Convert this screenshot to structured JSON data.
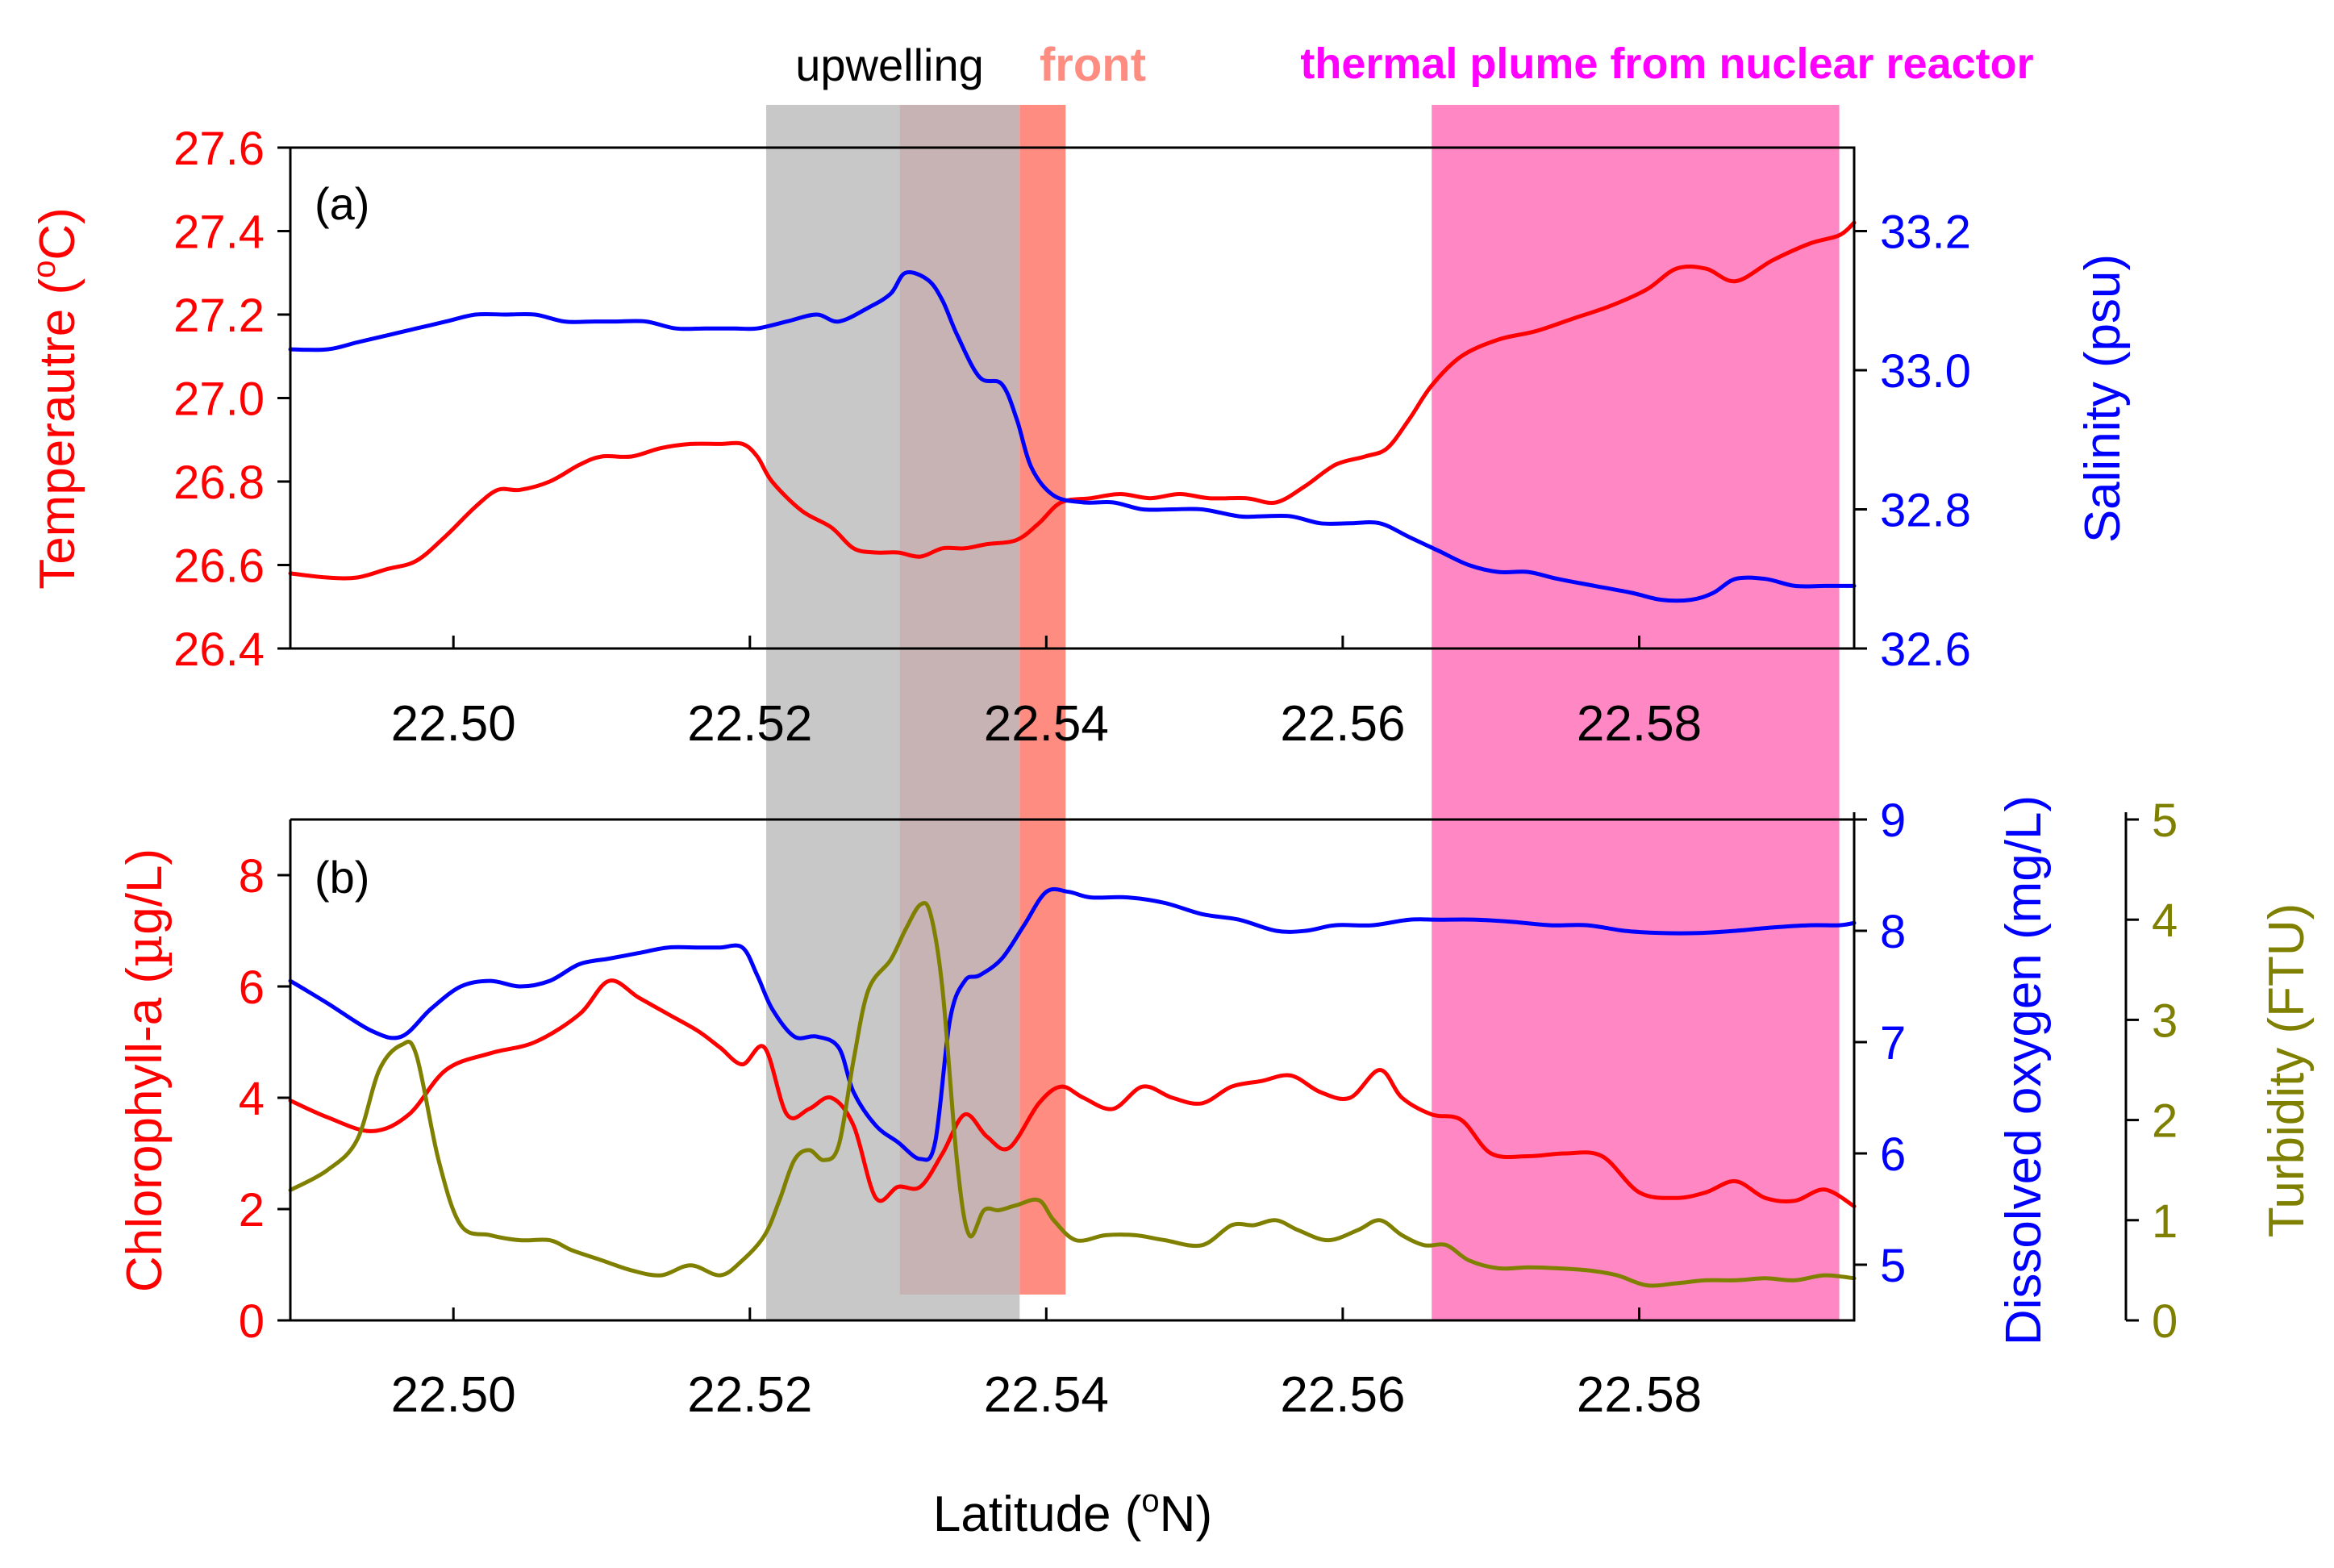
{
  "chart_data": [
    {
      "panel": "(a)",
      "type": "line",
      "title": "",
      "xlabel": "",
      "xlim": [
        22.489,
        22.5945
      ],
      "xticks": [
        "22.50",
        "22.52",
        "22.54",
        "22.56",
        "22.58"
      ],
      "xtick_values": [
        22.5,
        22.52,
        22.54,
        22.56,
        22.58
      ],
      "grid": false,
      "y_left": {
        "label": "Temperautre (°C)",
        "label_prefix": "Temperautre (",
        "label_sup": "o",
        "label_suffix": "C)",
        "lim": [
          26.4,
          27.6
        ],
        "ticks": [
          "26.4",
          "26.6",
          "26.8",
          "27.0",
          "27.2",
          "27.4",
          "27.6"
        ],
        "tick_values": [
          26.4,
          26.6,
          26.8,
          27.0,
          27.2,
          27.4,
          27.6
        ],
        "color": "#ff0000"
      },
      "y_right": {
        "label": "Salinity (psu)",
        "lim": [
          32.6,
          33.32
        ],
        "ticks": [
          "32.6",
          "32.8",
          "33.0",
          "33.2"
        ],
        "tick_values": [
          32.6,
          32.8,
          33.0,
          33.2
        ],
        "color": "#0000ff"
      },
      "series": [
        {
          "name": "Temperature",
          "axis": "left",
          "color": "#ff0000",
          "x": [
            22.489,
            22.4915,
            22.4935,
            22.4955,
            22.4975,
            22.4995,
            22.5015,
            22.503,
            22.5045,
            22.5065,
            22.5085,
            22.51,
            22.512,
            22.514,
            22.516,
            22.518,
            22.5195,
            22.5205,
            22.5215,
            22.5235,
            22.5255,
            22.527,
            22.5285,
            22.53,
            22.5315,
            22.533,
            22.5345,
            22.536,
            22.538,
            22.5395,
            22.541,
            22.543,
            22.545,
            22.547,
            22.549,
            22.551,
            22.5535,
            22.5555,
            22.5575,
            22.5595,
            22.5615,
            22.563,
            22.5645,
            22.566,
            22.568,
            22.5705,
            22.573,
            22.5755,
            22.578,
            22.5805,
            22.5825,
            22.5845,
            22.5865,
            22.589,
            22.5915,
            22.5935,
            22.5945
          ],
          "values": [
            26.58,
            26.57,
            26.57,
            26.59,
            26.61,
            26.67,
            26.74,
            26.78,
            26.78,
            26.8,
            26.84,
            26.86,
            26.86,
            26.88,
            26.89,
            26.89,
            26.89,
            26.86,
            26.8,
            26.73,
            26.69,
            26.64,
            26.63,
            26.63,
            26.62,
            26.64,
            26.64,
            26.65,
            26.66,
            26.7,
            26.75,
            26.76,
            26.77,
            26.76,
            26.77,
            26.76,
            26.76,
            26.75,
            26.79,
            26.84,
            26.86,
            26.88,
            26.95,
            27.03,
            27.1,
            27.14,
            27.16,
            27.19,
            27.22,
            27.26,
            27.31,
            27.31,
            27.28,
            27.33,
            27.37,
            27.39,
            27.42
          ]
        },
        {
          "name": "Salinity",
          "axis": "right",
          "color": "#0000ff",
          "x": [
            22.489,
            22.4915,
            22.4935,
            22.4955,
            22.4975,
            22.4995,
            22.5015,
            22.5035,
            22.5055,
            22.5075,
            22.5095,
            22.511,
            22.513,
            22.515,
            22.517,
            22.519,
            22.5205,
            22.5225,
            22.5245,
            22.526,
            22.528,
            22.5295,
            22.5305,
            22.532,
            22.533,
            22.534,
            22.5355,
            22.537,
            22.538,
            22.539,
            22.5405,
            22.5425,
            22.5445,
            22.5465,
            22.5485,
            22.5505,
            22.553,
            22.5545,
            22.5565,
            22.5585,
            22.5605,
            22.5625,
            22.5645,
            22.5665,
            22.5685,
            22.5705,
            22.5725,
            22.5745,
            22.577,
            22.5795,
            22.5815,
            22.5835,
            22.585,
            22.5865,
            22.5885,
            22.5905,
            22.5925,
            22.5945
          ],
          "values": [
            33.03,
            33.03,
            33.04,
            33.05,
            33.06,
            33.07,
            33.08,
            33.08,
            33.08,
            33.07,
            33.07,
            33.07,
            33.07,
            33.06,
            33.06,
            33.06,
            33.06,
            33.07,
            33.08,
            33.07,
            33.09,
            33.11,
            33.14,
            33.13,
            33.1,
            33.05,
            32.99,
            32.98,
            32.93,
            32.86,
            32.82,
            32.81,
            32.81,
            32.8,
            32.8,
            32.8,
            32.79,
            32.79,
            32.79,
            32.78,
            32.78,
            32.78,
            32.76,
            32.74,
            32.72,
            32.71,
            32.71,
            32.7,
            32.69,
            32.68,
            32.67,
            32.67,
            32.68,
            32.7,
            32.7,
            32.69,
            32.69,
            32.69
          ]
        }
      ]
    },
    {
      "panel": "(b)",
      "type": "line",
      "title": "",
      "xlabel": "Latitude (°N)",
      "xlabel_prefix": "Latitude (",
      "xlabel_sup": "o",
      "xlabel_suffix": "N)",
      "xlim": [
        22.489,
        22.5945
      ],
      "xticks": [
        "22.50",
        "22.52",
        "22.54",
        "22.56",
        "22.58"
      ],
      "xtick_values": [
        22.5,
        22.52,
        22.54,
        22.56,
        22.58
      ],
      "grid": false,
      "y_left": {
        "label": "Chlorophyll-a (µg/L)",
        "label_prefix": "Chlorophyll-a (",
        "label_mu": "µ",
        "label_suffix": "g/L)",
        "lim": [
          0,
          9
        ],
        "ticks": [
          "0",
          "2",
          "4",
          "6",
          "8"
        ],
        "tick_values": [
          0,
          2,
          4,
          6,
          8
        ],
        "color": "#ff0000"
      },
      "y_right": {
        "label": "Dissolved oxygen (mg/L)",
        "lim": [
          4.5,
          9
        ],
        "ticks": [
          "5",
          "6",
          "7",
          "8",
          "9"
        ],
        "tick_values": [
          5,
          6,
          7,
          8,
          9
        ],
        "color": "#0000ff"
      },
      "y_right2": {
        "label": "Turbidity (FTU)",
        "lim": [
          0,
          5
        ],
        "ticks": [
          "0",
          "1",
          "2",
          "3",
          "4",
          "5"
        ],
        "tick_values": [
          0,
          1,
          2,
          3,
          4,
          5
        ],
        "color": "#808000"
      },
      "series": [
        {
          "name": "Chlorophyll-a",
          "axis": "left",
          "color": "#ff0000",
          "x": [
            22.489,
            22.4915,
            22.4945,
            22.497,
            22.4995,
            22.5025,
            22.5055,
            22.5085,
            22.5105,
            22.5125,
            22.5145,
            22.5165,
            22.518,
            22.5195,
            22.521,
            22.5225,
            22.524,
            22.5255,
            22.527,
            22.5285,
            22.53,
            22.5315,
            22.533,
            22.5345,
            22.536,
            22.5375,
            22.5395,
            22.541,
            22.5425,
            22.5445,
            22.5465,
            22.5485,
            22.5505,
            22.5525,
            22.5545,
            22.5565,
            22.5585,
            22.5605,
            22.5625,
            22.564,
            22.566,
            22.568,
            22.57,
            22.5725,
            22.575,
            22.5775,
            22.58,
            22.5825,
            22.5845,
            22.5865,
            22.5885,
            22.5905,
            22.5925,
            22.5945
          ],
          "values": [
            3.95,
            3.65,
            3.4,
            3.7,
            4.5,
            4.8,
            5.0,
            5.5,
            6.1,
            5.8,
            5.5,
            5.2,
            4.9,
            4.6,
            4.9,
            3.7,
            3.8,
            4.0,
            3.5,
            2.2,
            2.4,
            2.4,
            3.0,
            3.7,
            3.3,
            3.1,
            3.9,
            4.2,
            4.0,
            3.8,
            4.2,
            4.0,
            3.9,
            4.2,
            4.3,
            4.4,
            4.1,
            4.0,
            4.5,
            4.0,
            3.7,
            3.6,
            3.0,
            2.95,
            3.0,
            2.95,
            2.3,
            2.2,
            2.3,
            2.5,
            2.2,
            2.15,
            2.35,
            2.05
          ]
        },
        {
          "name": "Dissolved oxygen",
          "axis": "right",
          "color": "#0000ff",
          "x": [
            22.489,
            22.4915,
            22.4945,
            22.4965,
            22.4985,
            22.5005,
            22.5025,
            22.5045,
            22.5065,
            22.5085,
            22.5105,
            22.5125,
            22.5145,
            22.5165,
            22.518,
            22.5195,
            22.5205,
            22.5215,
            22.523,
            22.5245,
            22.526,
            22.527,
            22.5285,
            22.53,
            22.5315,
            22.5325,
            22.5335,
            22.5345,
            22.5355,
            22.537,
            22.5385,
            22.54,
            22.5415,
            22.543,
            22.5455,
            22.548,
            22.5505,
            22.553,
            22.5555,
            22.5575,
            22.5595,
            22.562,
            22.5645,
            22.5665,
            22.569,
            22.5715,
            22.574,
            22.5765,
            22.579,
            22.5815,
            22.584,
            22.5865,
            22.589,
            22.5915,
            22.5935,
            22.5945
          ],
          "values": [
            7.55,
            7.35,
            7.1,
            7.05,
            7.3,
            7.5,
            7.55,
            7.5,
            7.55,
            7.7,
            7.75,
            7.8,
            7.85,
            7.85,
            7.85,
            7.85,
            7.6,
            7.3,
            7.05,
            7.05,
            6.95,
            6.55,
            6.25,
            6.1,
            5.95,
            6.1,
            7.2,
            7.55,
            7.6,
            7.75,
            8.05,
            8.35,
            8.35,
            8.3,
            8.3,
            8.25,
            8.15,
            8.1,
            8.0,
            8.0,
            8.05,
            8.05,
            8.1,
            8.1,
            8.1,
            8.08,
            8.05,
            8.05,
            8.0,
            7.98,
            7.98,
            8.0,
            8.03,
            8.05,
            8.05,
            8.07
          ]
        },
        {
          "name": "Turbidity",
          "axis": "right2",
          "color": "#808000",
          "x": [
            22.489,
            22.4915,
            22.4935,
            22.495,
            22.4965,
            22.4975,
            22.499,
            22.5005,
            22.5025,
            22.5045,
            22.5065,
            22.508,
            22.51,
            22.512,
            22.514,
            22.516,
            22.518,
            22.5195,
            22.521,
            22.522,
            22.523,
            22.524,
            22.525,
            22.526,
            22.527,
            22.528,
            22.5295,
            22.5305,
            22.5315,
            22.5322,
            22.533,
            22.534,
            22.5348,
            22.5358,
            22.5368,
            22.538,
            22.5395,
            22.5405,
            22.542,
            22.544,
            22.546,
            22.548,
            22.5505,
            22.5525,
            22.554,
            22.5555,
            22.557,
            22.559,
            22.561,
            22.5625,
            22.564,
            22.5655,
            22.567,
            22.5685,
            22.5705,
            22.5725,
            22.5745,
            22.5765,
            22.5785,
            22.5805,
            22.5825,
            22.5845,
            22.5865,
            22.5885,
            22.5905,
            22.5925,
            22.5945
          ],
          "values": [
            1.3,
            1.5,
            1.8,
            2.5,
            2.75,
            2.65,
            1.6,
            0.95,
            0.85,
            0.8,
            0.8,
            0.7,
            0.6,
            0.5,
            0.45,
            0.55,
            0.45,
            0.6,
            0.85,
            1.2,
            1.6,
            1.7,
            1.6,
            1.75,
            2.6,
            3.3,
            3.6,
            3.9,
            4.15,
            4.05,
            3.3,
            1.55,
            0.85,
            1.1,
            1.1,
            1.15,
            1.2,
            1.0,
            0.8,
            0.85,
            0.85,
            0.8,
            0.75,
            0.95,
            0.95,
            1.0,
            0.9,
            0.8,
            0.9,
            1.0,
            0.85,
            0.75,
            0.75,
            0.6,
            0.52,
            0.53,
            0.52,
            0.5,
            0.45,
            0.35,
            0.37,
            0.4,
            0.4,
            0.42,
            0.4,
            0.45,
            0.42
          ]
        }
      ]
    }
  ],
  "regions": [
    {
      "name": "upwelling",
      "label": "upwelling",
      "from": 22.5211,
      "to": 22.5301,
      "color": "#c8c8c8",
      "label_color": "#000000"
    },
    {
      "name": "upwelling-front-overlap",
      "label": "",
      "from": 22.5301,
      "to": 22.5382,
      "color": "#c8b3b4",
      "label_color": "#000000"
    },
    {
      "name": "front",
      "label": "front",
      "from": 22.5382,
      "to": 22.5413,
      "color": "#ff8c80",
      "label_color": "#ff8c80"
    },
    {
      "name": "thermal-plume",
      "label": "thermal plume from nuclear reactor",
      "from": 22.566,
      "to": 22.5935,
      "color": "#ff88c4",
      "label_color": "#ff00ff"
    }
  ]
}
